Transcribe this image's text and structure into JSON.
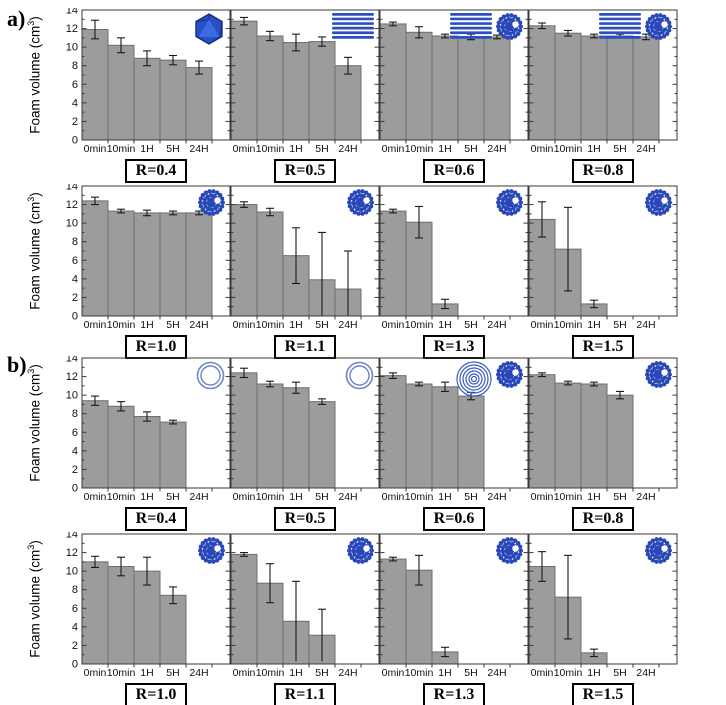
{
  "figure": {
    "panel_a_label": "a)",
    "panel_b_label": "b)"
  },
  "colors": {
    "bar_fill": "#9c9c9c",
    "bar_edge": "#6e6e6e",
    "axis": "#3a3a3a",
    "error_bar": "#1a1a1a",
    "icon_blue": "#2b4fc0",
    "icon_dark_blue": "#0e2f8d",
    "icon_light_blue": "#3e6de6",
    "ring_blue": "#6d86c4",
    "onion_blue": "#3c5cc0",
    "dot_blue": "#2847b8"
  },
  "chart_data": {
    "type": "bar",
    "axis": {
      "ylabel": "Foam volume (cm3)",
      "ylabel_prefix": "Foam volume (cm",
      "ylabel_sup": "3",
      "ylabel_suffix": ")",
      "categories": [
        "0min",
        "10min",
        "1H",
        "5H",
        "24H"
      ],
      "yticks": [
        0,
        2,
        4,
        6,
        8,
        10,
        12,
        14
      ],
      "ylim": [
        0,
        14
      ],
      "grid": false,
      "error_bars": true
    },
    "charts": [
      {
        "panel": "a",
        "row": 0,
        "col": 0,
        "title": "R=0.4",
        "values": [
          11.9,
          10.2,
          8.8,
          8.6,
          7.8
        ],
        "errors": [
          1.0,
          0.8,
          0.8,
          0.5,
          0.7
        ],
        "icons": [
          "icosahedron"
        ]
      },
      {
        "panel": "a",
        "row": 0,
        "col": 1,
        "title": "R=0.5",
        "values": [
          12.8,
          11.2,
          10.5,
          10.6,
          8.0
        ],
        "errors": [
          0.4,
          0.5,
          0.9,
          0.5,
          0.9
        ],
        "icons": [
          "lamellar"
        ]
      },
      {
        "panel": "a",
        "row": 0,
        "col": 2,
        "title": "R=0.6",
        "values": [
          12.5,
          11.6,
          11.2,
          11.1,
          11.1
        ],
        "errors": [
          0.2,
          0.6,
          0.2,
          0.3,
          0.2
        ],
        "icons": [
          "lamellar",
          "micelle"
        ]
      },
      {
        "panel": "a",
        "row": 0,
        "col": 3,
        "title": "R=0.8",
        "values": [
          12.3,
          11.5,
          11.2,
          11.2,
          11.1
        ],
        "errors": [
          0.3,
          0.3,
          0.2,
          0.2,
          0.3
        ],
        "icons": [
          "lamellar",
          "micelle"
        ]
      },
      {
        "panel": "a",
        "row": 1,
        "col": 0,
        "title": "R=1.0",
        "values": [
          12.4,
          11.3,
          11.1,
          11.1,
          11.1
        ],
        "errors": [
          0.4,
          0.2,
          0.3,
          0.2,
          0.2
        ],
        "icons": [
          "micelle"
        ]
      },
      {
        "panel": "a",
        "row": 1,
        "col": 1,
        "title": "R=1.1",
        "values": [
          12.0,
          11.2,
          6.5,
          3.9,
          2.9
        ],
        "errors": [
          0.3,
          0.4,
          3.0,
          5.1,
          4.1
        ],
        "icons": [
          "micelle"
        ]
      },
      {
        "panel": "a",
        "row": 1,
        "col": 2,
        "title": "R=1.3",
        "values": [
          11.3,
          10.1,
          1.3,
          0,
          0
        ],
        "errors": [
          0.2,
          1.7,
          0.5,
          0,
          0
        ],
        "icons": [
          "micelle"
        ]
      },
      {
        "panel": "a",
        "row": 1,
        "col": 3,
        "title": "R=1.5",
        "values": [
          10.4,
          7.2,
          1.3,
          0,
          0
        ],
        "errors": [
          1.9,
          4.5,
          0.4,
          0,
          0
        ],
        "icons": [
          "micelle"
        ]
      },
      {
        "panel": "b",
        "row": 0,
        "col": 0,
        "title": "R=0.4",
        "values": [
          9.4,
          8.8,
          7.7,
          7.1,
          0
        ],
        "errors": [
          0.5,
          0.5,
          0.5,
          0.2,
          0
        ],
        "icons": [
          "vesicle"
        ]
      },
      {
        "panel": "b",
        "row": 0,
        "col": 1,
        "title": "R=0.5",
        "values": [
          12.4,
          11.2,
          10.8,
          9.3,
          0
        ],
        "errors": [
          0.5,
          0.3,
          0.6,
          0.3,
          0
        ],
        "icons": [
          "vesicle"
        ]
      },
      {
        "panel": "b",
        "row": 0,
        "col": 2,
        "title": "R=0.6",
        "values": [
          12.1,
          11.2,
          10.9,
          9.9,
          0
        ],
        "errors": [
          0.3,
          0.2,
          0.5,
          0.4,
          0
        ],
        "icons": [
          "onion",
          "micelle"
        ]
      },
      {
        "panel": "b",
        "row": 0,
        "col": 3,
        "title": "R=0.8",
        "values": [
          12.2,
          11.3,
          11.2,
          10.0,
          0
        ],
        "errors": [
          0.2,
          0.2,
          0.2,
          0.4,
          0
        ],
        "icons": [
          "micelle"
        ]
      },
      {
        "panel": "b",
        "row": 1,
        "col": 0,
        "title": "R=1.0",
        "values": [
          11.0,
          10.5,
          10.0,
          7.4,
          0
        ],
        "errors": [
          0.6,
          1.0,
          1.5,
          0.9,
          0
        ],
        "icons": [
          "micelle"
        ]
      },
      {
        "panel": "b",
        "row": 1,
        "col": 1,
        "title": "R=1.1",
        "values": [
          11.8,
          8.7,
          4.6,
          3.1,
          0
        ],
        "errors": [
          0.2,
          2.1,
          4.3,
          2.8,
          0
        ],
        "icons": [
          "micelle"
        ]
      },
      {
        "panel": "b",
        "row": 1,
        "col": 2,
        "title": "R=1.3",
        "values": [
          11.3,
          10.1,
          1.3,
          0,
          0
        ],
        "errors": [
          0.2,
          1.6,
          0.5,
          0,
          0
        ],
        "icons": [
          "micelle"
        ]
      },
      {
        "panel": "b",
        "row": 1,
        "col": 3,
        "title": "R=1.5",
        "values": [
          10.5,
          7.2,
          1.2,
          0,
          0
        ],
        "errors": [
          1.6,
          4.5,
          0.4,
          0,
          0
        ],
        "icons": [
          "micelle"
        ]
      }
    ]
  }
}
